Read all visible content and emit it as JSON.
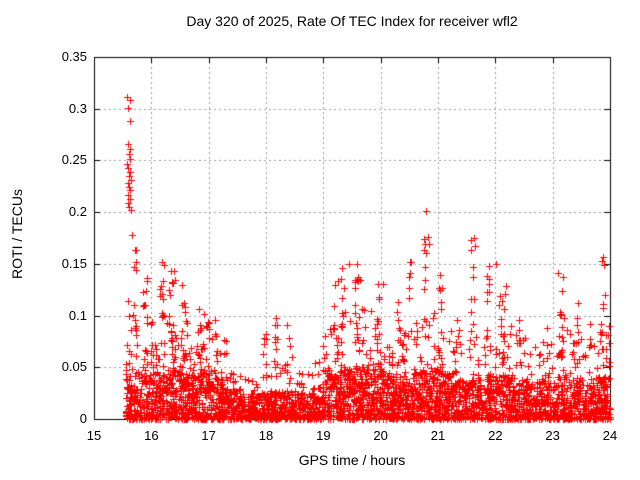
{
  "chart_data": {
    "type": "scatter",
    "title": "Day 320 of 2025, Rate Of TEC Index for receiver wfl2",
    "xlabel": "GPS time / hours",
    "ylabel": "ROTI / TECUs",
    "xlim": [
      15,
      24
    ],
    "ylim": [
      0,
      0.35
    ],
    "xtick_values": [
      15,
      16,
      17,
      18,
      19,
      20,
      21,
      22,
      23,
      24
    ],
    "xtick_labels": [
      "15",
      "16",
      "17",
      "18",
      "19",
      "20",
      "21",
      "22",
      "23",
      "24"
    ],
    "ytick_values": [
      0,
      0.05,
      0.1,
      0.15,
      0.2,
      0.25,
      0.3,
      0.35
    ],
    "ytick_labels": [
      "0",
      "0.05",
      "0.1",
      "0.15",
      "0.2",
      "0.25",
      "0.3",
      "0.35"
    ],
    "grid": true,
    "legend": "none",
    "marker": "+",
    "marker_color": "#ff0000",
    "grid_color": "#9e9e9e",
    "border_color": "#000000",
    "background_color": "#ffffff",
    "data_start_hour": 15.55,
    "prng_seed": 320,
    "outlier_points": [
      [
        15.58,
        0.311
      ],
      [
        15.62,
        0.308
      ],
      [
        15.6,
        0.301
      ],
      [
        15.63,
        0.288
      ],
      [
        15.59,
        0.266
      ],
      [
        15.62,
        0.261
      ],
      [
        15.61,
        0.256
      ],
      [
        15.63,
        0.251
      ],
      [
        15.58,
        0.247
      ],
      [
        15.6,
        0.243
      ],
      [
        15.62,
        0.239
      ],
      [
        15.61,
        0.235
      ],
      [
        15.64,
        0.231
      ],
      [
        15.59,
        0.228
      ],
      [
        15.61,
        0.224
      ],
      [
        15.63,
        0.221
      ],
      [
        15.6,
        0.217
      ],
      [
        15.62,
        0.213
      ],
      [
        15.59,
        0.209
      ],
      [
        15.61,
        0.205
      ],
      [
        15.65,
        0.202
      ],
      [
        15.66,
        0.178
      ],
      [
        15.74,
        0.163
      ],
      [
        15.73,
        0.152
      ],
      [
        15.7,
        0.147
      ],
      [
        20.79,
        0.201
      ],
      [
        20.82,
        0.176
      ],
      [
        20.85,
        0.169
      ],
      [
        21.62,
        0.175
      ],
      [
        21.64,
        0.167
      ],
      [
        22.02,
        0.15
      ],
      [
        19.45,
        0.15
      ],
      [
        23.87,
        0.157
      ],
      [
        23.89,
        0.149
      ]
    ],
    "spike_columns": [
      [
        15.72,
        0.07,
        0.163,
        6
      ],
      [
        15.9,
        0.12,
        0.136,
        12
      ],
      [
        16.18,
        0.1,
        0.152,
        12
      ],
      [
        16.38,
        0.14,
        0.143,
        16
      ],
      [
        16.57,
        0.08,
        0.13,
        8
      ],
      [
        16.9,
        0.18,
        0.106,
        14
      ],
      [
        17.12,
        0.1,
        0.096,
        8
      ],
      [
        17.97,
        0.12,
        0.082,
        7
      ],
      [
        18.15,
        0.18,
        0.098,
        10
      ],
      [
        18.42,
        0.14,
        0.091,
        7
      ],
      [
        19.0,
        0.1,
        0.08,
        6
      ],
      [
        19.23,
        0.1,
        0.133,
        9
      ],
      [
        19.33,
        0.08,
        0.146,
        7
      ],
      [
        19.58,
        0.14,
        0.15,
        14
      ],
      [
        19.95,
        0.16,
        0.131,
        10
      ],
      [
        20.3,
        0.1,
        0.113,
        7
      ],
      [
        20.5,
        0.1,
        0.152,
        8
      ],
      [
        20.78,
        0.1,
        0.174,
        10
      ],
      [
        21.05,
        0.14,
        0.139,
        9
      ],
      [
        21.35,
        0.1,
        0.096,
        6
      ],
      [
        21.6,
        0.1,
        0.173,
        8
      ],
      [
        21.88,
        0.12,
        0.148,
        9
      ],
      [
        22.12,
        0.14,
        0.129,
        11
      ],
      [
        22.4,
        0.12,
        0.096,
        7
      ],
      [
        22.9,
        0.1,
        0.088,
        6
      ],
      [
        23.15,
        0.12,
        0.141,
        10
      ],
      [
        23.42,
        0.12,
        0.112,
        7
      ],
      [
        23.65,
        0.1,
        0.092,
        6
      ],
      [
        23.86,
        0.1,
        0.153,
        9
      ],
      [
        23.97,
        0.05,
        0.09,
        5
      ]
    ],
    "density_bands": [
      [
        15.55,
        15.8,
        0.05,
        85,
        0.115,
        22
      ],
      [
        15.8,
        16.05,
        0.045,
        70,
        0.095,
        16
      ],
      [
        16.05,
        16.3,
        0.05,
        85,
        0.11,
        20
      ],
      [
        16.3,
        16.55,
        0.05,
        90,
        0.112,
        22
      ],
      [
        16.55,
        16.8,
        0.048,
        85,
        0.1,
        18
      ],
      [
        16.8,
        17.05,
        0.05,
        90,
        0.095,
        20
      ],
      [
        17.05,
        17.3,
        0.042,
        85,
        0.085,
        16
      ],
      [
        17.3,
        17.55,
        0.03,
        75,
        0.052,
        10
      ],
      [
        17.55,
        17.8,
        0.025,
        75,
        0.045,
        8
      ],
      [
        17.8,
        18.05,
        0.025,
        75,
        0.05,
        8
      ],
      [
        18.05,
        18.3,
        0.028,
        75,
        0.055,
        9
      ],
      [
        18.3,
        18.55,
        0.028,
        75,
        0.055,
        9
      ],
      [
        18.55,
        18.8,
        0.026,
        75,
        0.048,
        8
      ],
      [
        18.8,
        19.05,
        0.032,
        80,
        0.06,
        10
      ],
      [
        19.05,
        19.3,
        0.045,
        85,
        0.09,
        16
      ],
      [
        19.3,
        19.55,
        0.05,
        90,
        0.105,
        20
      ],
      [
        19.55,
        19.8,
        0.052,
        95,
        0.11,
        22
      ],
      [
        19.8,
        20.05,
        0.05,
        90,
        0.105,
        20
      ],
      [
        20.05,
        20.3,
        0.045,
        85,
        0.09,
        16
      ],
      [
        20.3,
        20.55,
        0.042,
        85,
        0.095,
        16
      ],
      [
        20.55,
        20.8,
        0.045,
        85,
        0.1,
        18
      ],
      [
        20.8,
        21.05,
        0.05,
        90,
        0.105,
        20
      ],
      [
        21.05,
        21.3,
        0.048,
        85,
        0.095,
        18
      ],
      [
        21.3,
        21.55,
        0.038,
        80,
        0.075,
        12
      ],
      [
        21.55,
        21.8,
        0.04,
        80,
        0.085,
        14
      ],
      [
        21.8,
        22.05,
        0.042,
        85,
        0.09,
        16
      ],
      [
        22.05,
        22.3,
        0.045,
        85,
        0.095,
        18
      ],
      [
        22.3,
        22.55,
        0.04,
        80,
        0.08,
        14
      ],
      [
        22.55,
        22.8,
        0.035,
        80,
        0.07,
        12
      ],
      [
        22.8,
        23.05,
        0.038,
        80,
        0.075,
        12
      ],
      [
        23.05,
        23.3,
        0.045,
        85,
        0.09,
        16
      ],
      [
        23.3,
        23.55,
        0.04,
        80,
        0.08,
        14
      ],
      [
        23.55,
        23.8,
        0.036,
        80,
        0.072,
        12
      ],
      [
        23.8,
        24.0,
        0.042,
        70,
        0.085,
        14
      ]
    ]
  }
}
